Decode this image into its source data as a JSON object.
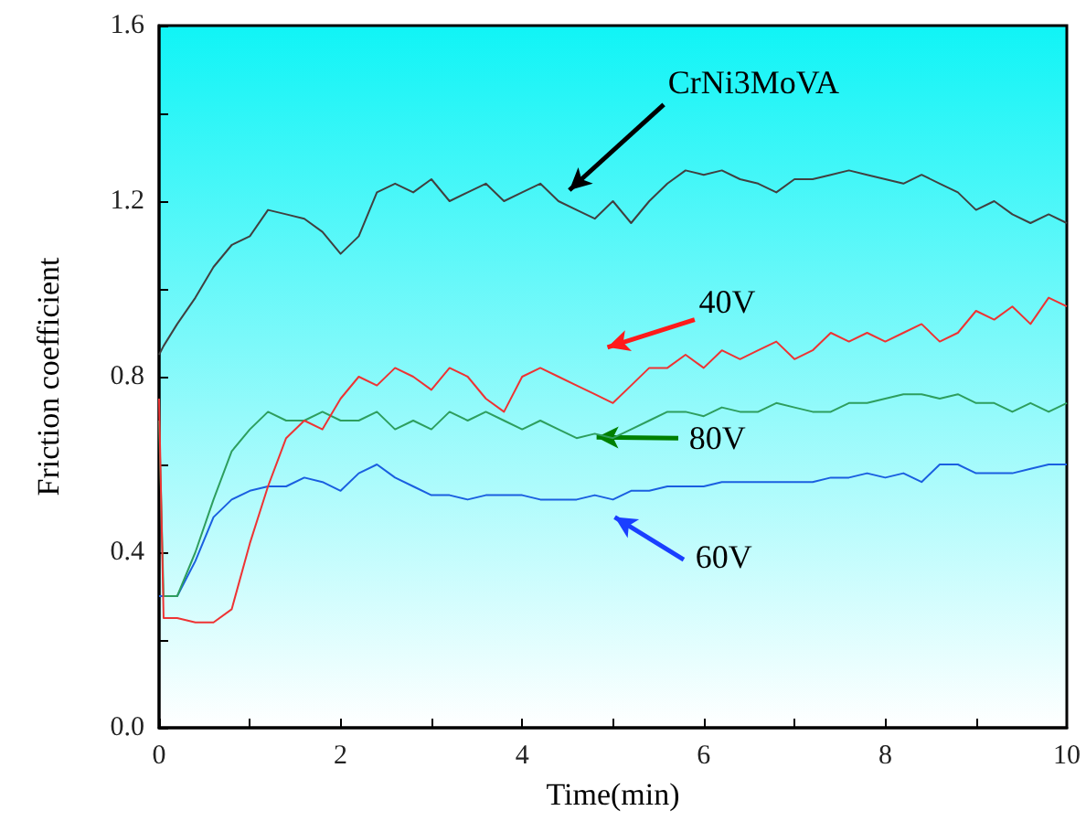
{
  "chart_data": {
    "type": "line",
    "xlabel": "Time(min)",
    "ylabel": "Friction coefficient",
    "x": [
      0,
      0.05,
      0.2,
      0.4,
      0.6,
      0.8,
      1.0,
      1.2,
      1.4,
      1.6,
      1.8,
      2.0,
      2.2,
      2.4,
      2.6,
      2.8,
      3.0,
      3.2,
      3.4,
      3.6,
      3.8,
      4.0,
      4.2,
      4.4,
      4.6,
      4.8,
      5.0,
      5.2,
      5.4,
      5.6,
      5.8,
      6.0,
      6.2,
      6.4,
      6.6,
      6.8,
      7.0,
      7.2,
      7.4,
      7.6,
      7.8,
      8.0,
      8.2,
      8.4,
      8.6,
      8.8,
      9.0,
      9.2,
      9.4,
      9.6,
      9.8,
      10
    ],
    "series": [
      {
        "name": "CrNi3MoVA",
        "color": "#404040",
        "values": [
          0.85,
          0.87,
          0.92,
          0.98,
          1.05,
          1.1,
          1.12,
          1.18,
          1.17,
          1.16,
          1.13,
          1.08,
          1.12,
          1.22,
          1.24,
          1.22,
          1.25,
          1.2,
          1.22,
          1.24,
          1.2,
          1.22,
          1.24,
          1.2,
          1.18,
          1.16,
          1.2,
          1.15,
          1.2,
          1.24,
          1.27,
          1.26,
          1.27,
          1.25,
          1.24,
          1.22,
          1.25,
          1.25,
          1.26,
          1.27,
          1.26,
          1.25,
          1.24,
          1.26,
          1.24,
          1.22,
          1.18,
          1.2,
          1.17,
          1.15,
          1.17,
          1.15
        ]
      },
      {
        "name": "40V",
        "color": "#ee3333",
        "values": [
          0.75,
          0.25,
          0.25,
          0.24,
          0.24,
          0.27,
          0.42,
          0.55,
          0.66,
          0.7,
          0.68,
          0.75,
          0.8,
          0.78,
          0.82,
          0.8,
          0.77,
          0.82,
          0.8,
          0.75,
          0.72,
          0.8,
          0.82,
          0.8,
          0.78,
          0.76,
          0.74,
          0.78,
          0.82,
          0.82,
          0.85,
          0.82,
          0.86,
          0.84,
          0.86,
          0.88,
          0.84,
          0.86,
          0.9,
          0.88,
          0.9,
          0.88,
          0.9,
          0.92,
          0.88,
          0.9,
          0.95,
          0.93,
          0.96,
          0.92,
          0.98,
          0.96
        ]
      },
      {
        "name": "80V",
        "color": "#2e9e5e",
        "values": [
          0.7,
          0.3,
          0.3,
          0.4,
          0.52,
          0.63,
          0.68,
          0.72,
          0.7,
          0.7,
          0.72,
          0.7,
          0.7,
          0.72,
          0.68,
          0.7,
          0.68,
          0.72,
          0.7,
          0.72,
          0.7,
          0.68,
          0.7,
          0.68,
          0.66,
          0.67,
          0.66,
          0.68,
          0.7,
          0.72,
          0.72,
          0.71,
          0.73,
          0.72,
          0.72,
          0.74,
          0.73,
          0.72,
          0.72,
          0.74,
          0.74,
          0.75,
          0.76,
          0.76,
          0.75,
          0.76,
          0.74,
          0.74,
          0.72,
          0.74,
          0.72,
          0.74
        ]
      },
      {
        "name": "60V",
        "color": "#1a5fe0",
        "values": [
          0.3,
          0.3,
          0.3,
          0.38,
          0.48,
          0.52,
          0.54,
          0.55,
          0.55,
          0.57,
          0.56,
          0.54,
          0.58,
          0.6,
          0.57,
          0.55,
          0.53,
          0.53,
          0.52,
          0.53,
          0.53,
          0.53,
          0.52,
          0.52,
          0.52,
          0.53,
          0.52,
          0.54,
          0.54,
          0.55,
          0.55,
          0.55,
          0.56,
          0.56,
          0.56,
          0.56,
          0.56,
          0.56,
          0.57,
          0.57,
          0.58,
          0.57,
          0.58,
          0.56,
          0.6,
          0.6,
          0.58,
          0.58,
          0.58,
          0.59,
          0.6,
          0.6
        ]
      }
    ],
    "xlim": [
      0,
      10
    ],
    "xticks": [
      0,
      {
        "value": 1,
        "label": null
      },
      2,
      {
        "value": 3,
        "label": null
      },
      4,
      {
        "value": 5,
        "label": null
      },
      6,
      {
        "value": 7,
        "label": null
      },
      8,
      {
        "value": 9,
        "label": null
      },
      10
    ],
    "ylim": [
      0,
      1.6
    ],
    "yticks": [
      {
        "value": 0,
        "label": "0.0"
      },
      {
        "value": 0.2,
        "label": null
      },
      {
        "value": 0.4,
        "label": "0.4"
      },
      {
        "value": 0.6,
        "label": null
      },
      {
        "value": 0.8,
        "label": "0.8"
      },
      {
        "value": 1.0,
        "label": null
      },
      {
        "value": 1.2,
        "label": "1.2"
      },
      {
        "value": 1.4,
        "label": null
      },
      {
        "value": 1.6,
        "label": "1.6"
      }
    ],
    "grid": false,
    "legend": false,
    "marker": "none",
    "line_style": "solid"
  }
}
